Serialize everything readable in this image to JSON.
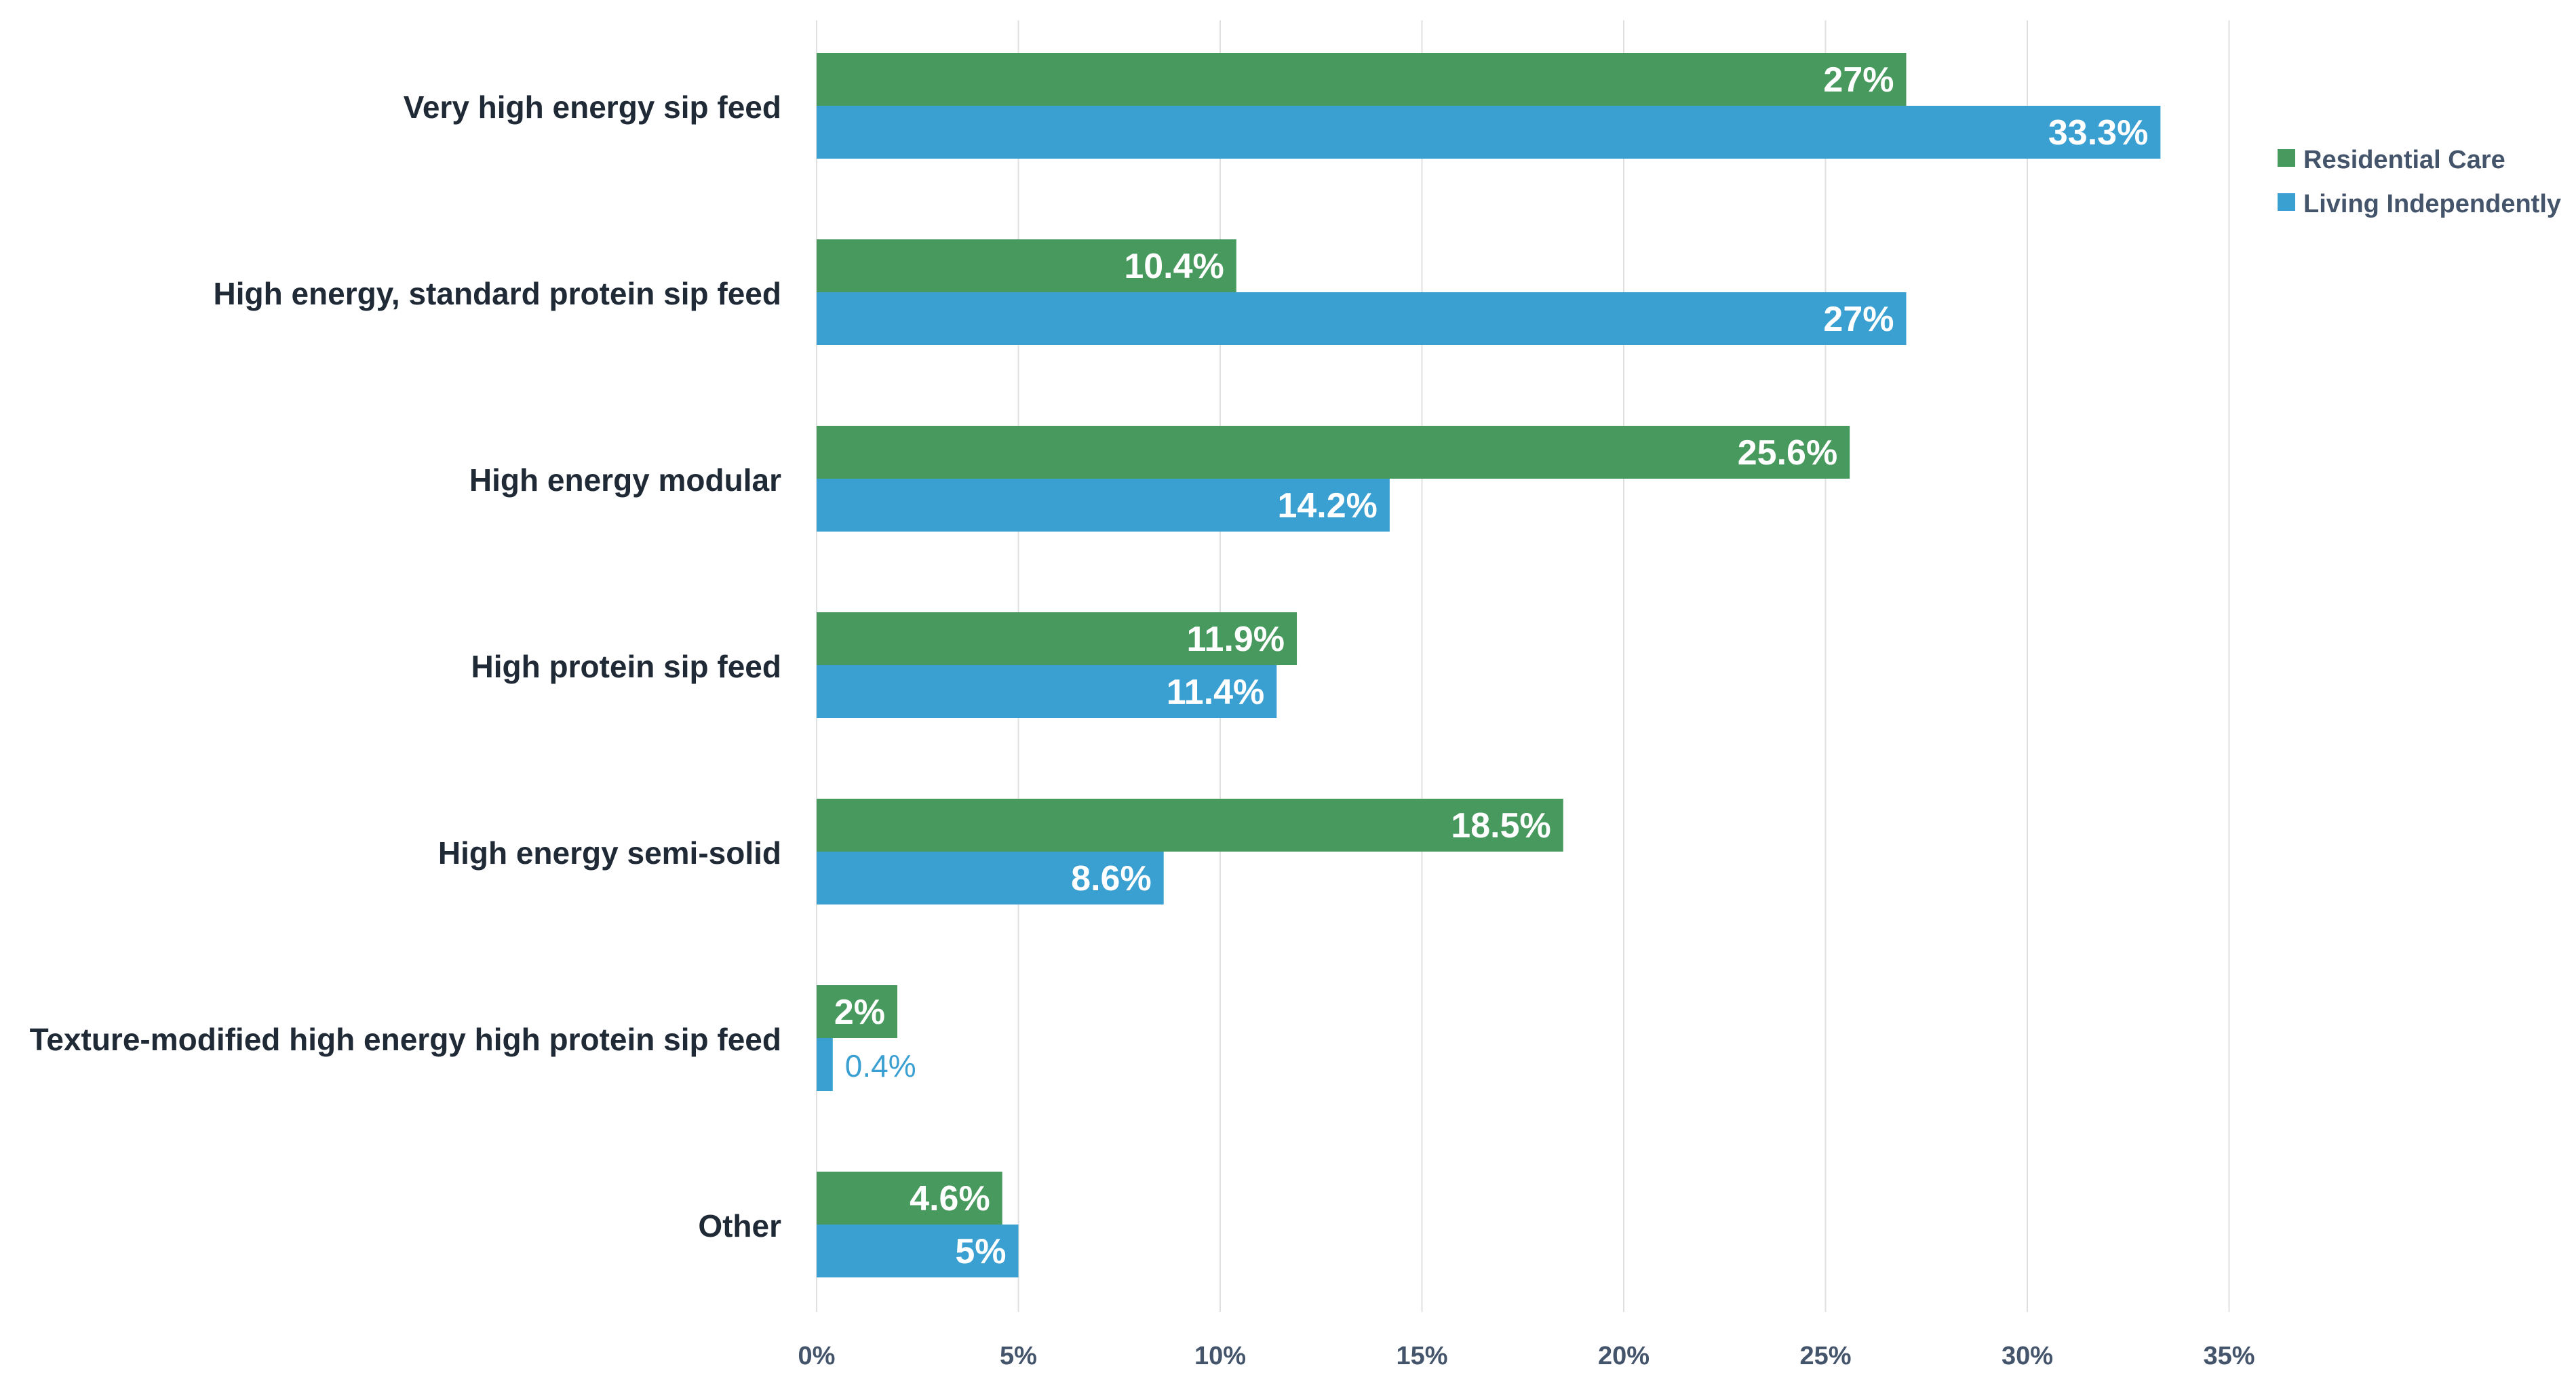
{
  "chart_data": {
    "type": "bar",
    "orientation": "horizontal",
    "title": "",
    "xlabel": "",
    "ylabel": "",
    "xlim": [
      0,
      35
    ],
    "tick_step": 5,
    "tick_suffix": "%",
    "grid": true,
    "legend_position": "top-right",
    "categories": [
      "Very high energy sip feed",
      "High energy, standard protein sip feed",
      "High energy modular",
      "High protein sip feed",
      "High energy semi-solid",
      "Texture-modified high energy high protein sip feed",
      "Other"
    ],
    "series": [
      {
        "name": "Residential Care",
        "color": "#47995E",
        "values": [
          27,
          10.4,
          25.6,
          11.9,
          18.5,
          2,
          4.6
        ],
        "labels": [
          "27%",
          "10.4%",
          "25.6%",
          "11.9%",
          "18.5%",
          "2%",
          "4.6%"
        ]
      },
      {
        "name": "Living Independently",
        "color": "#3A9FD1",
        "values": [
          33.3,
          27,
          14.2,
          11.4,
          8.6,
          0.4,
          5
        ],
        "labels": [
          "33.3%",
          "27%",
          "14.2%",
          "11.4%",
          "8.6%",
          "0.4%",
          "5%"
        ]
      }
    ],
    "text_colors": {
      "category": "#1F2A36",
      "axis": "#44546A",
      "legend": "#44546A",
      "grid": "#E0E0E0",
      "inside_label": "#FFFFFF"
    }
  }
}
